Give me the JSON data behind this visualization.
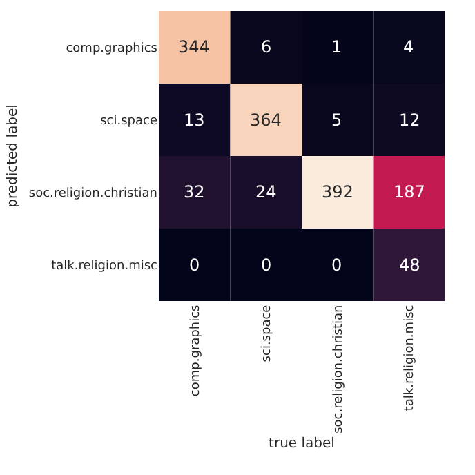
{
  "chart_data": {
    "type": "heatmap",
    "xlabel": "true label",
    "ylabel": "predicted label",
    "categories": [
      "comp.graphics",
      "sci.space",
      "soc.religion.christian",
      "talk.religion.misc"
    ],
    "y_categories": [
      "comp.graphics",
      "sci.space",
      "soc.religion.christian",
      "talk.religion.misc"
    ],
    "cells": [
      [
        344,
        6,
        1,
        4
      ],
      [
        13,
        364,
        5,
        12
      ],
      [
        32,
        24,
        392,
        187
      ],
      [
        0,
        0,
        0,
        48
      ]
    ],
    "data_labels": true
  }
}
